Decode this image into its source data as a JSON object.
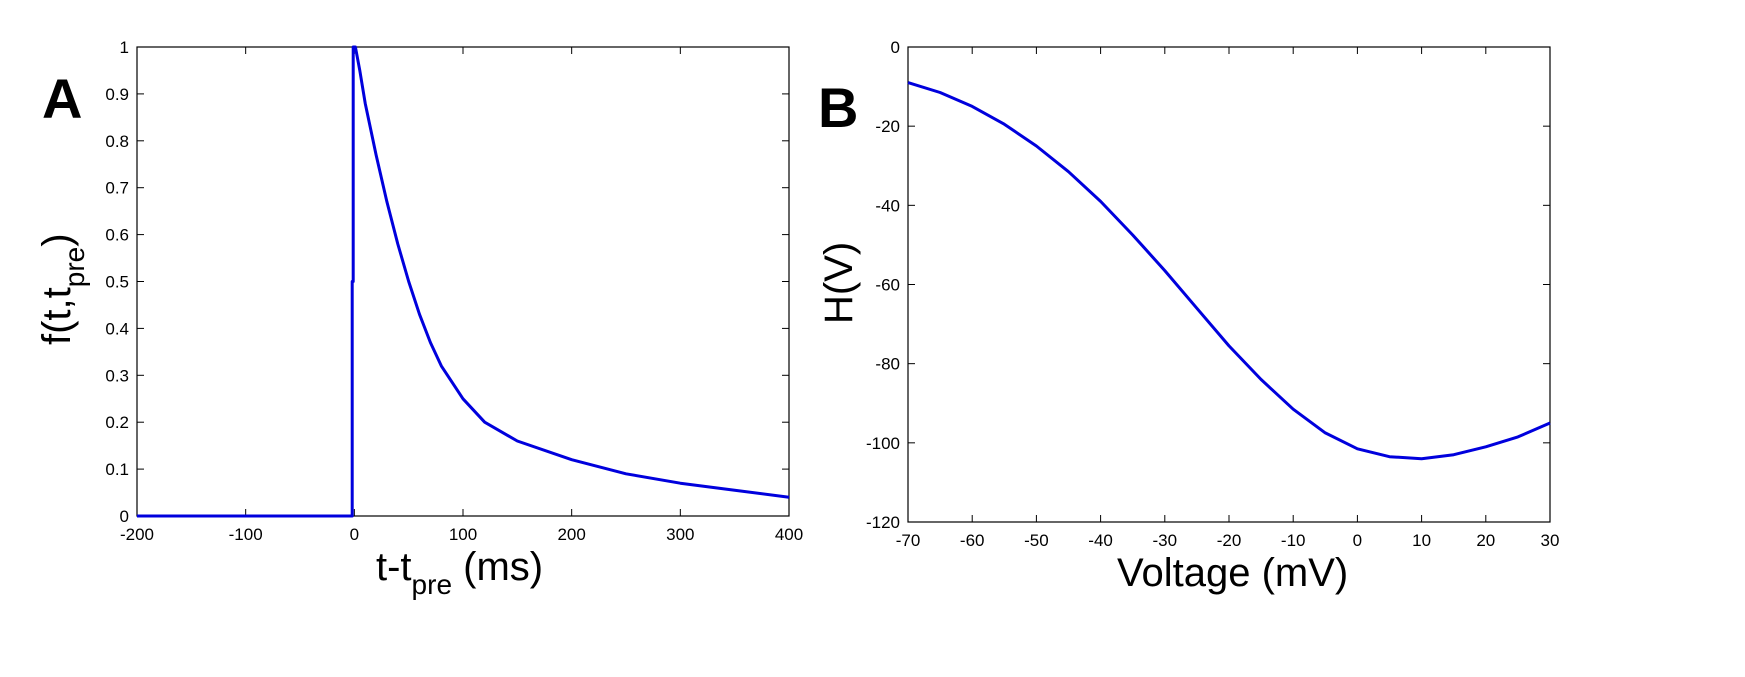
{
  "colors": {
    "line": "#0000dd",
    "axis": "#000000",
    "background": "#ffffff"
  },
  "panels": [
    {
      "letter": "A",
      "ylabel": {
        "main": "f(t,t",
        "sub": "pre",
        "tail": ")"
      },
      "xlabel": {
        "main": "t-t",
        "sub": "pre",
        "tail": " (ms)"
      }
    },
    {
      "letter": "B",
      "ylabel": {
        "main": "H(V)",
        "sub": "",
        "tail": ""
      },
      "xlabel": {
        "main": "Voltage (mV)",
        "sub": "",
        "tail": ""
      }
    }
  ],
  "chart_data": [
    {
      "type": "line",
      "panel": "A",
      "xlim": [
        -200,
        400
      ],
      "ylim": [
        0,
        1
      ],
      "xticks": [
        -200,
        -100,
        0,
        100,
        200,
        300,
        400
      ],
      "xtick_labels": [
        "-200",
        "-100",
        "0",
        "100",
        "200",
        "300",
        "400"
      ],
      "yticks": [
        0,
        0.1,
        0.2,
        0.3,
        0.4,
        0.5,
        0.6,
        0.7,
        0.8,
        0.9,
        1
      ],
      "ytick_labels": [
        "0",
        "0.1",
        "0.2",
        "0.3",
        "0.4",
        "0.5",
        "0.6",
        "0.7",
        "0.8",
        "0.9",
        "1"
      ],
      "grid": false,
      "series": [
        {
          "x": [
            -200,
            -2,
            -2,
            -1,
            -1,
            1,
            5,
            10,
            20,
            30,
            40,
            50,
            60,
            70,
            80,
            100,
            120,
            150,
            200,
            250,
            300,
            350,
            400
          ],
          "y": [
            0,
            0,
            0.5,
            0.5,
            1.0,
            1.0,
            0.95,
            0.88,
            0.77,
            0.67,
            0.58,
            0.5,
            0.43,
            0.37,
            0.32,
            0.25,
            0.2,
            0.16,
            0.12,
            0.09,
            0.07,
            0.055,
            0.04
          ]
        }
      ]
    },
    {
      "type": "line",
      "panel": "B",
      "xlim": [
        -70,
        30
      ],
      "ylim": [
        -120,
        0
      ],
      "xticks": [
        -70,
        -60,
        -50,
        -40,
        -30,
        -20,
        -10,
        0,
        10,
        20,
        30
      ],
      "xtick_labels": [
        "-70",
        "-60",
        "-50",
        "-40",
        "-30",
        "-20",
        "-10",
        "0",
        "10",
        "20",
        "30"
      ],
      "yticks": [
        -120,
        -100,
        -80,
        -60,
        -40,
        -20,
        0
      ],
      "ytick_labels": [
        "-120",
        "-100",
        "-80",
        "-60",
        "-40",
        "-20",
        "0"
      ],
      "grid": false,
      "series": [
        {
          "x": [
            -70,
            -65,
            -60,
            -55,
            -50,
            -45,
            -40,
            -35,
            -30,
            -25,
            -20,
            -15,
            -10,
            -5,
            0,
            5,
            10,
            15,
            20,
            25,
            30
          ],
          "y": [
            -9,
            -11.5,
            -15,
            -19.5,
            -25,
            -31.5,
            -39,
            -47.5,
            -56.5,
            -66,
            -75.5,
            -84,
            -91.5,
            -97.5,
            -101.5,
            -103.5,
            -104,
            -103,
            -101,
            -98.5,
            -95
          ]
        }
      ]
    }
  ]
}
